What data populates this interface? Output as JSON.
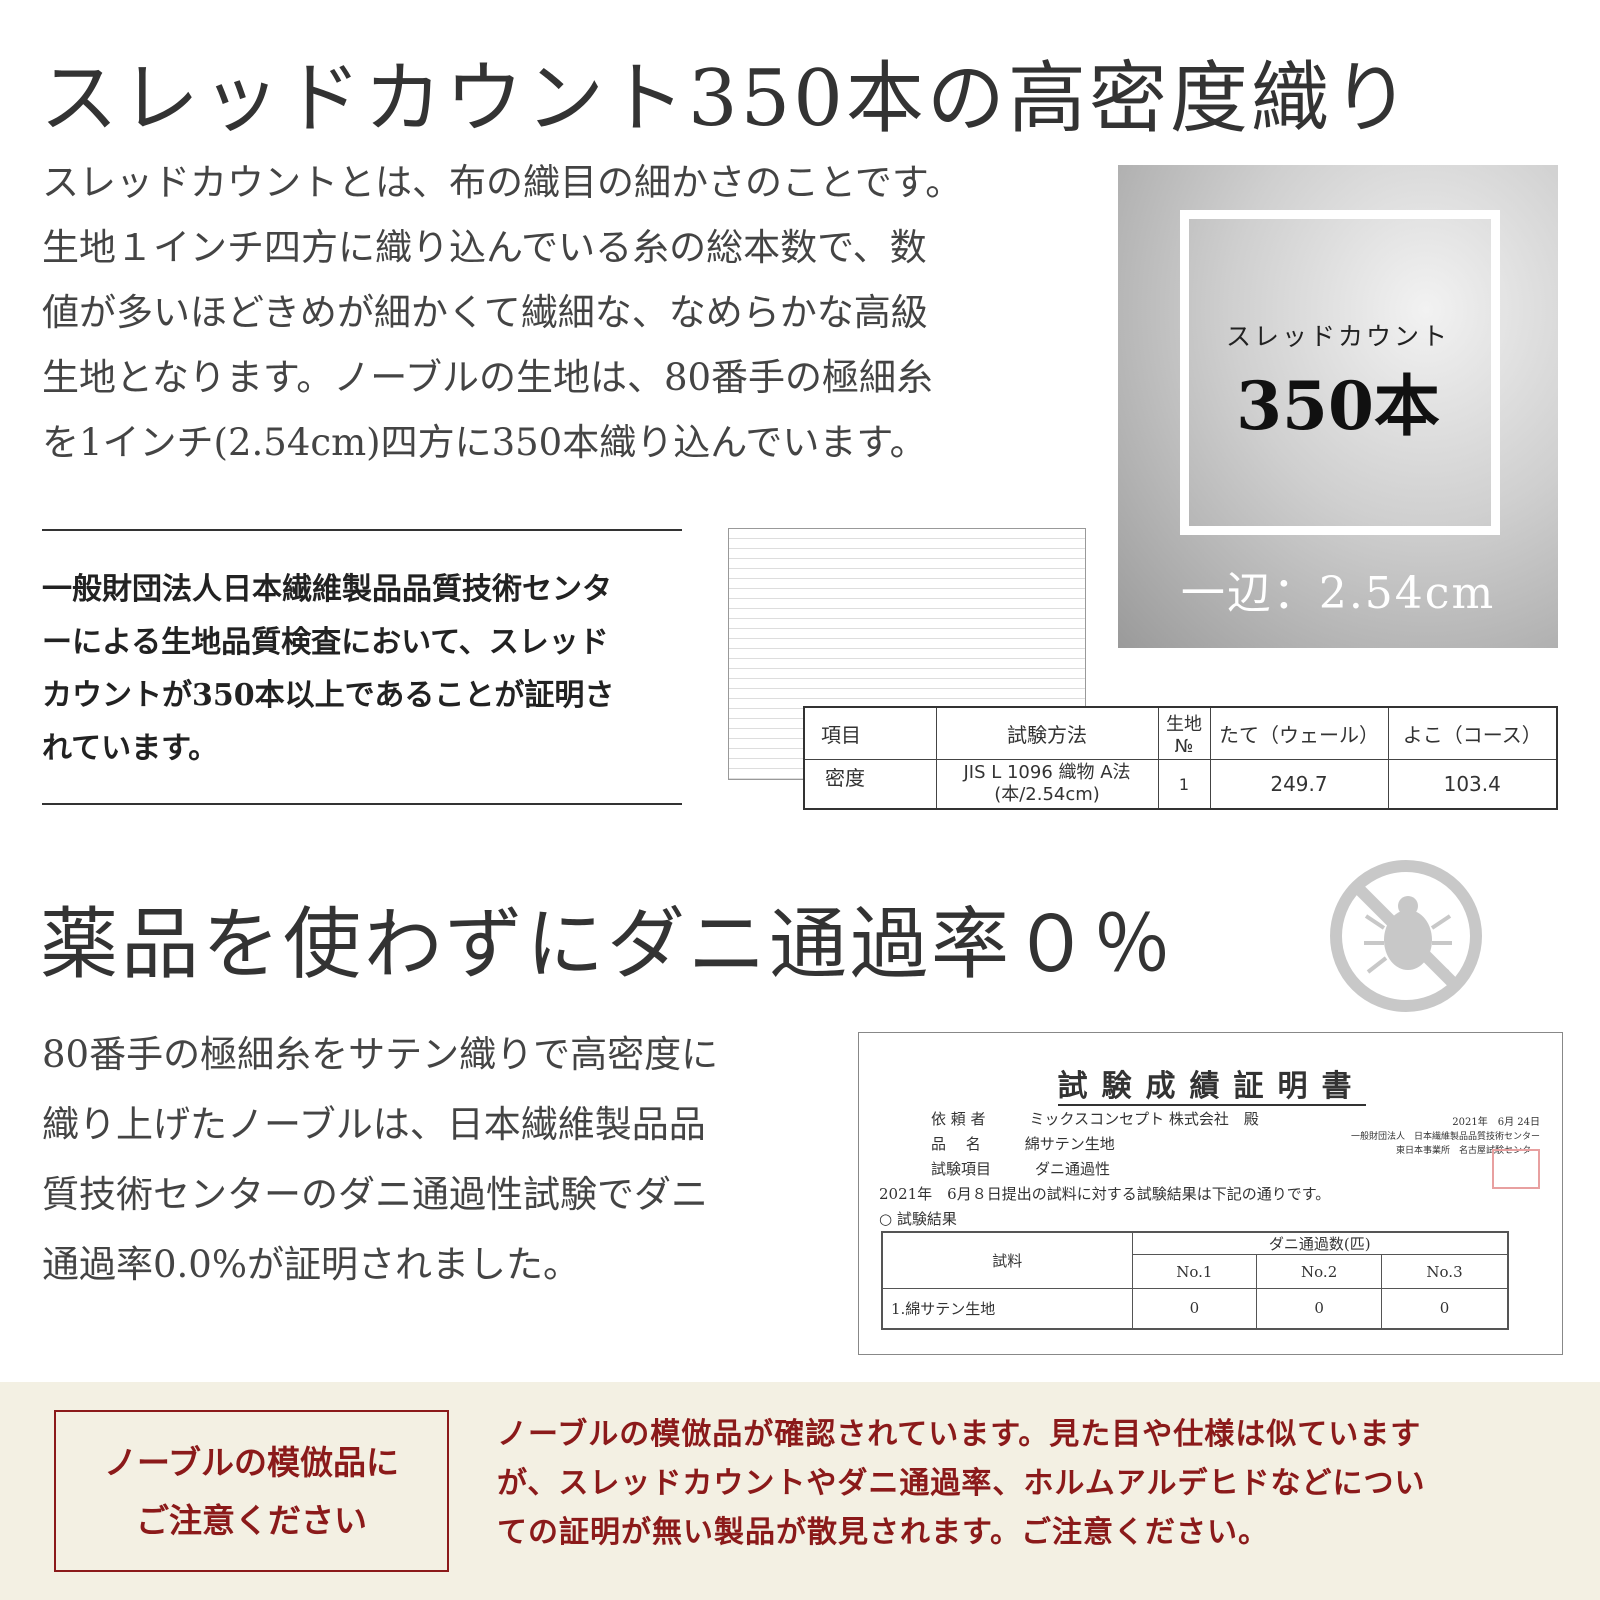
{
  "section1": {
    "title": "スレッドカウント350本の高密度織り",
    "paragraph": [
      "スレッドカウントとは、布の織目の細かさのことです。",
      "生地１インチ四方に織り込んでいる糸の総本数で、数",
      "値が多いほどきめが細かくて繊細な、なめらかな高級",
      "生地となります。ノーブルの生地は、80番手の極細糸",
      "を1インチ(2.54cm)四方に350本織り込んでいます。"
    ],
    "photo": {
      "label": "スレッドカウント",
      "count": "350本",
      "side": "一辺：2.54cm"
    },
    "certification": [
      "一般財団法人日本繊維製品品質技術センタ",
      "ーによる生地品質検査において、スレッド",
      "カウントが350本以上であることが証明さ",
      "れています。"
    ],
    "table": {
      "headers": [
        "項目",
        "試験方法",
        "生地№",
        "たて（ウェール）",
        "よこ（コース）"
      ],
      "row": [
        "密度",
        "JIS L 1096 織物 A法",
        "(本/2.54cm)",
        "1",
        "249.7",
        "103.4"
      ]
    }
  },
  "section2": {
    "title": "薬品を使わずにダニ通過率０％",
    "icon": "no-mite-icon",
    "paragraph": [
      "80番手の極細糸をサテン織りで高密度に",
      "織り上げたノーブルは、日本繊維製品品",
      "質技術センターのダニ通過性試験でダニ",
      "通過率0.0%が証明されました。"
    ],
    "certificate": {
      "title": "試験成績証明書",
      "client_label": "依 頼 者",
      "client": "ミックスコンセプト 株式会社　殿",
      "product_label": "品　 名",
      "product": "綿サテン生地",
      "item_label": "試験項目",
      "item": "ダニ通過性",
      "date": "2021年　6月 24日",
      "issuer": "一般財団法人　日本繊維製品品質技術センター",
      "office": "東日本事業所　名古屋試験センター",
      "statement": "2021年　6月８日提出の試料に対する試験結果は下記の通りです。",
      "results_label": "○ 試験結果",
      "sample_header": "試料",
      "count_header": "ダニ通過数(匹)",
      "cols": [
        "No.1",
        "No.2",
        "No.3"
      ],
      "sample": "1.綿サテン生地",
      "values": [
        "0",
        "0",
        "0"
      ]
    }
  },
  "warning": {
    "box": [
      "ノーブルの模倣品に",
      "ご注意ください"
    ],
    "text": [
      "ノーブルの模倣品が確認されています。見た目や仕様は似ています",
      "が、スレッドカウントやダニ通過率、ホルムアルデヒドなどについ",
      "ての証明が無い製品が散見されます。ご注意ください。"
    ],
    "color": "#8b1a1a"
  }
}
